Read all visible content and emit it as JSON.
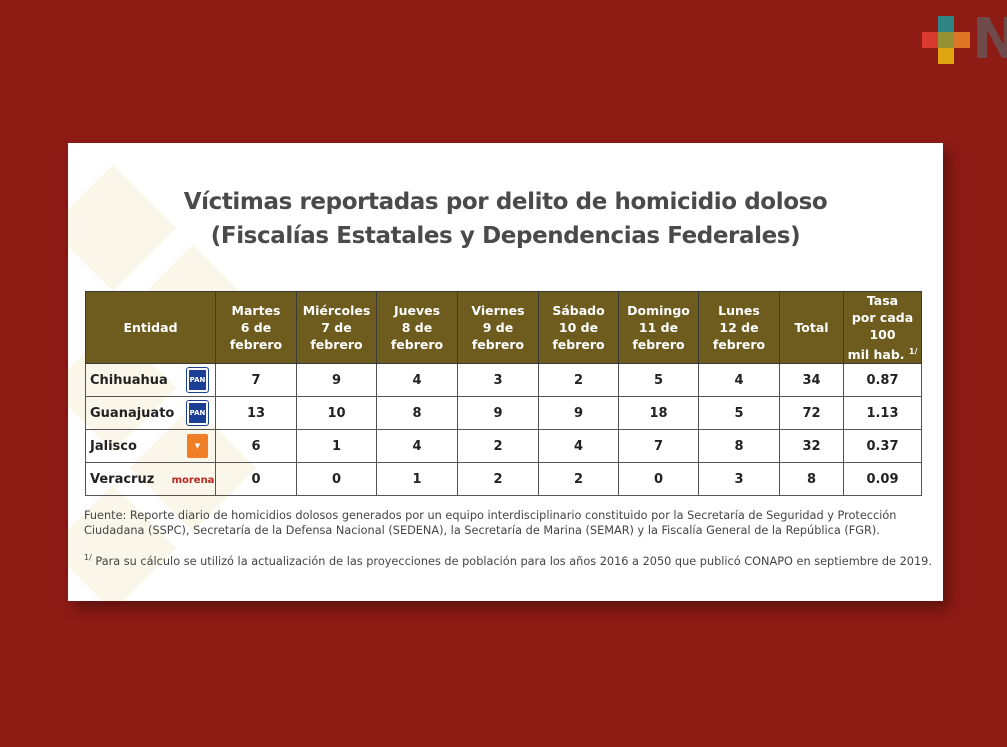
{
  "brand_logo": {
    "colors": [
      "#2e8583",
      "#d83a2e",
      "#959135",
      "#dd7524",
      "#e0a512"
    ],
    "letter": "N"
  },
  "title": {
    "line1": "Víctimas reportadas por delito de homicidio doloso",
    "line2": "(Fiscalías Estatales y Dependencias Federales)"
  },
  "table": {
    "headers": [
      [
        "Entidad",
        ""
      ],
      [
        "Martes",
        "6 de febrero"
      ],
      [
        "Miércoles",
        "7 de febrero"
      ],
      [
        "Jueves",
        "8 de febrero"
      ],
      [
        "Viernes",
        "9 de febrero"
      ],
      [
        "Sábado",
        "10 de febrero"
      ],
      [
        "Domingo",
        "11  de febrero"
      ],
      [
        "Lunes",
        "12 de febrero"
      ],
      [
        "Total",
        ""
      ]
    ],
    "rate_header": {
      "line1": "Tasa",
      "line2": "por cada 100",
      "line3": "mil hab.",
      "sup": "1/"
    },
    "rows": [
      {
        "entidad": "Chihuahua",
        "party": "PAN",
        "values": [
          "7",
          "9",
          "4",
          "3",
          "2",
          "5",
          "4",
          "34",
          "0.87"
        ]
      },
      {
        "entidad": "Guanajuato",
        "party": "PAN",
        "values": [
          "13",
          "10",
          "8",
          "9",
          "9",
          "18",
          "5",
          "72",
          "1.13"
        ]
      },
      {
        "entidad": "Jalisco",
        "party": "MC",
        "values": [
          "6",
          "1",
          "4",
          "2",
          "4",
          "7",
          "8",
          "32",
          "0.37"
        ]
      },
      {
        "entidad": "Veracruz",
        "party": "morena",
        "values": [
          "0",
          "0",
          "1",
          "2",
          "2",
          "0",
          "3",
          "8",
          "0.09"
        ]
      }
    ]
  },
  "notes": {
    "source": "Fuente: Reporte diario de homicidios dolosos generados por un equipo interdisciplinario constituido por la Secretaría de Seguridad y Protección Ciudadana (SSPC), Secretaría de la Defensa Nacional (SEDENA), la Secretaría de Marina (SEMAR) y la Fiscalía General de la República (FGR).",
    "footnote_mark": "1/",
    "footnote": " Para su cálculo se utilizó la actualización de las proyecciones de población para los años 2016 a 2050 que publicó CONAPO en septiembre de 2019."
  }
}
